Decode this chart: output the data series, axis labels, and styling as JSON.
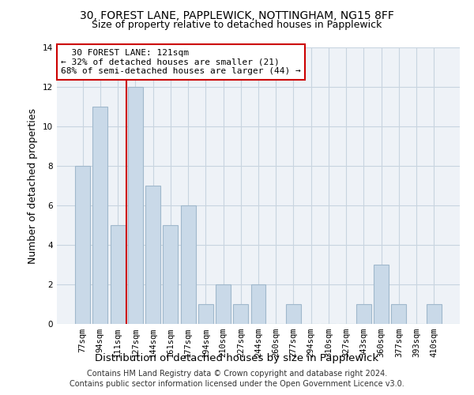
{
  "title1": "30, FOREST LANE, PAPPLEWICK, NOTTINGHAM, NG15 8FF",
  "title2": "Size of property relative to detached houses in Papplewick",
  "xlabel": "Distribution of detached houses by size in Papplewick",
  "ylabel": "Number of detached properties",
  "categories": [
    "77sqm",
    "94sqm",
    "111sqm",
    "127sqm",
    "144sqm",
    "161sqm",
    "177sqm",
    "194sqm",
    "210sqm",
    "227sqm",
    "244sqm",
    "260sqm",
    "277sqm",
    "294sqm",
    "310sqm",
    "327sqm",
    "343sqm",
    "360sqm",
    "377sqm",
    "393sqm",
    "410sqm"
  ],
  "values": [
    8,
    11,
    5,
    12,
    7,
    5,
    6,
    1,
    2,
    1,
    2,
    0,
    1,
    0,
    0,
    0,
    1,
    3,
    1,
    0,
    1
  ],
  "bar_color": "#c9d9e8",
  "bar_edge_color": "#a0b8cc",
  "highlight_index": 2,
  "highlight_line_color": "#cc0000",
  "annotation_text": "  30 FOREST LANE: 121sqm\n← 32% of detached houses are smaller (21)\n68% of semi-detached houses are larger (44) →",
  "annotation_box_color": "#ffffff",
  "annotation_box_edge_color": "#cc0000",
  "ylim": [
    0,
    14
  ],
  "yticks": [
    0,
    2,
    4,
    6,
    8,
    10,
    12,
    14
  ],
  "footer1": "Contains HM Land Registry data © Crown copyright and database right 2024.",
  "footer2": "Contains public sector information licensed under the Open Government Licence v3.0.",
  "background_color": "#eef2f7",
  "grid_color": "#c8d4e0",
  "title1_fontsize": 10,
  "title2_fontsize": 9,
  "axis_label_fontsize": 9,
  "tick_fontsize": 7.5,
  "annotation_fontsize": 8,
  "footer_fontsize": 7
}
